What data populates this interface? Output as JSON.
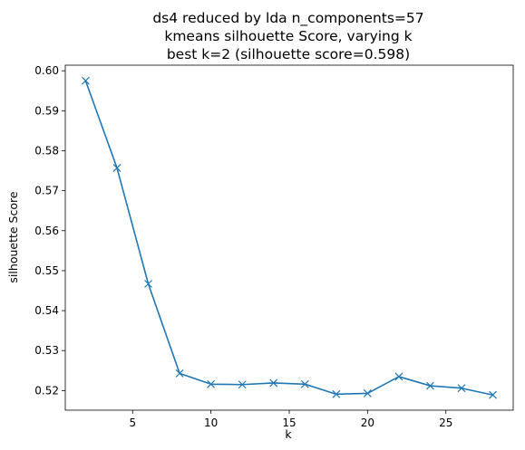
{
  "chart_data": {
    "type": "line",
    "title_lines": [
      "ds4 reduced by lda n_components=57",
      "kmeans silhouette Score, varying k",
      "best k=2 (silhouette score=0.598)"
    ],
    "xlabel": "k",
    "ylabel": "silhouette Score",
    "x": [
      2,
      4,
      6,
      8,
      10,
      12,
      14,
      16,
      18,
      20,
      22,
      24,
      26,
      28
    ],
    "series": [
      {
        "values": [
          0.5975,
          0.5757,
          0.5467,
          0.5243,
          0.5216,
          0.5215,
          0.5219,
          0.5216,
          0.5191,
          0.5193,
          0.5235,
          0.5212,
          0.5206,
          0.5189
        ],
        "color": "#1f77b4",
        "marker": "x"
      }
    ],
    "xlim": [
      0.7,
      29.3
    ],
    "ylim": [
      0.5151,
      0.6014
    ],
    "xticks": [
      5,
      10,
      15,
      20,
      25
    ],
    "xtick_labels": [
      "5",
      "10",
      "15",
      "20",
      "25"
    ],
    "yticks": [
      0.52,
      0.53,
      0.54,
      0.55,
      0.56,
      0.57,
      0.58,
      0.59,
      0.6
    ],
    "ytick_labels": [
      "0.52",
      "0.53",
      "0.54",
      "0.55",
      "0.56",
      "0.57",
      "0.58",
      "0.59",
      "0.60"
    ],
    "grid": false,
    "legend": "none"
  }
}
